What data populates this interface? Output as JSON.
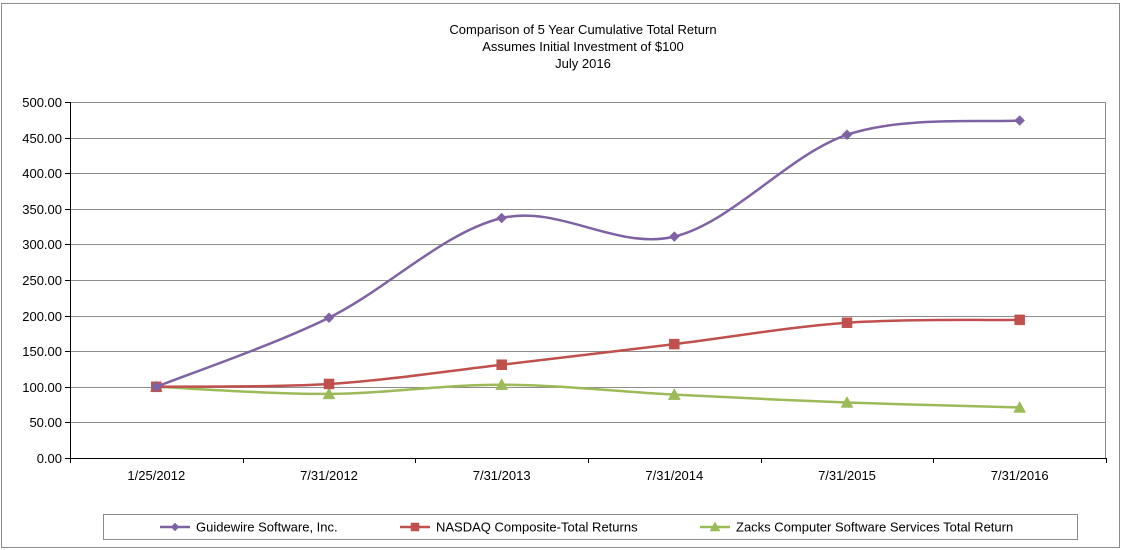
{
  "chart_data": {
    "type": "line",
    "title": [
      "Comparison of 5 Year Cumulative Total Return",
      "Assumes Initial Investment of $100",
      "July 2016"
    ],
    "categories": [
      "1/25/2012",
      "7/31/2012",
      "7/31/2013",
      "7/31/2014",
      "7/31/2015",
      "7/31/2016"
    ],
    "ylim": [
      0,
      500
    ],
    "yticks": [
      0,
      50,
      100,
      150,
      200,
      250,
      300,
      350,
      400,
      450,
      500
    ],
    "ytick_labels": [
      "0.00",
      "50.00",
      "100.00",
      "150.00",
      "200.00",
      "250.00",
      "300.00",
      "350.00",
      "400.00",
      "450.00",
      "500.00"
    ],
    "grid": true,
    "legend_position": "bottom",
    "series": [
      {
        "name": "Guidewire Software, Inc.",
        "marker": "diamond",
        "color": "#7f62a3",
        "values": [
          100,
          197,
          337,
          311,
          454,
          474
        ]
      },
      {
        "name": "NASDAQ Composite-Total Returns",
        "marker": "square",
        "color": "#c0504d",
        "values": [
          100,
          104,
          131,
          160,
          190,
          194
        ]
      },
      {
        "name": "Zacks Computer Software Services Total Return",
        "marker": "triangle",
        "color": "#9bbb59",
        "values": [
          100,
          90,
          103,
          89,
          78,
          71
        ]
      }
    ]
  }
}
